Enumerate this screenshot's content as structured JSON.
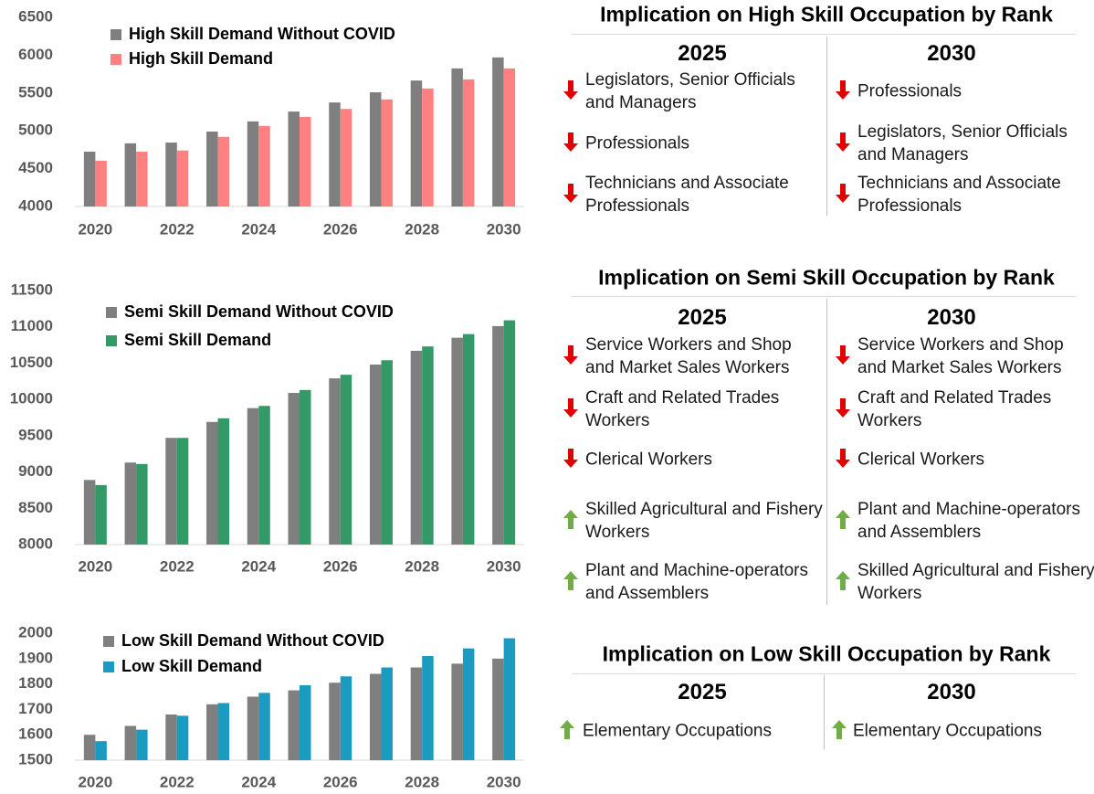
{
  "chart_data": [
    {
      "type": "bar",
      "categories": [
        2020,
        null,
        2022,
        null,
        2024,
        null,
        2026,
        null,
        2028,
        null,
        2030
      ],
      "series": [
        {
          "name": "High Skill Demand Without COVID",
          "color": "#7f7f7f",
          "values": [
            4725,
            4835,
            4845,
            4990,
            5125,
            5255,
            5375,
            5510,
            5665,
            5825,
            5970
          ]
        },
        {
          "name": "High Skill Demand",
          "color": "#ff8080",
          "values": [
            4605,
            4725,
            4740,
            4920,
            5065,
            5185,
            5290,
            5415,
            5560,
            5680,
            5825
          ]
        }
      ],
      "ylim": [
        4000,
        6500
      ],
      "yticks": [
        4000,
        4500,
        5000,
        5500,
        6000,
        6500
      ]
    },
    {
      "type": "bar",
      "categories": [
        2020,
        null,
        2022,
        null,
        2024,
        null,
        2026,
        null,
        2028,
        null,
        2030
      ],
      "series": [
        {
          "name": "Semi Skill Demand Without COVID",
          "color": "#7f7f7f",
          "values": [
            8890,
            9130,
            9470,
            9690,
            9880,
            10090,
            10290,
            10480,
            10670,
            10850,
            11010
          ]
        },
        {
          "name": "Semi Skill Demand",
          "color": "#339966",
          "values": [
            8820,
            9110,
            9470,
            9740,
            9910,
            10130,
            10340,
            10540,
            10730,
            10900,
            11090
          ]
        }
      ],
      "ylim": [
        8000,
        11500
      ],
      "yticks": [
        8000,
        8500,
        9000,
        9500,
        10000,
        10500,
        11000,
        11500
      ]
    },
    {
      "type": "bar",
      "categories": [
        2020,
        null,
        2022,
        null,
        2024,
        null,
        2026,
        null,
        2028,
        null,
        2030
      ],
      "series": [
        {
          "name": "Low Skill Demand Without COVID",
          "color": "#7f7f7f",
          "values": [
            1600,
            1635,
            1680,
            1720,
            1750,
            1775,
            1805,
            1840,
            1865,
            1880,
            1900
          ]
        },
        {
          "name": "Low Skill Demand",
          "color": "#1a9bbf",
          "values": [
            1575,
            1620,
            1675,
            1725,
            1765,
            1795,
            1830,
            1865,
            1910,
            1940,
            1980
          ]
        }
      ],
      "ylim": [
        1500,
        2000
      ],
      "yticks": [
        1500,
        1600,
        1700,
        1800,
        1900,
        2000
      ]
    }
  ],
  "panels": [
    {
      "title": "Implication on High Skill Occupation by Rank",
      "columns": [
        {
          "header": "2025",
          "items": [
            {
              "text": "Legislators, Senior Officials and Managers",
              "trend": "down"
            },
            {
              "text": "Professionals",
              "trend": "down"
            },
            {
              "text": "Technicians and Associate Professionals",
              "trend": "down"
            }
          ]
        },
        {
          "header": "2030",
          "items": [
            {
              "text": "Professionals",
              "trend": "down"
            },
            {
              "text": "Legislators, Senior Officials and Managers",
              "trend": "down"
            },
            {
              "text": "Technicians and Associate Professionals",
              "trend": "down"
            }
          ]
        }
      ]
    },
    {
      "title": "Implication on Semi Skill Occupation by Rank",
      "columns": [
        {
          "header": "2025",
          "items": [
            {
              "text": "Service Workers and Shop and Market Sales Workers",
              "trend": "down"
            },
            {
              "text": "Craft and Related Trades Workers",
              "trend": "down"
            },
            {
              "text": "Clerical Workers",
              "trend": "down"
            },
            {
              "text": "Skilled Agricultural and Fishery Workers",
              "trend": "up"
            },
            {
              "text": "Plant and Machine-operators and Assemblers",
              "trend": "up"
            }
          ]
        },
        {
          "header": "2030",
          "items": [
            {
              "text": "Service Workers and Shop and Market Sales Workers",
              "trend": "down"
            },
            {
              "text": "Craft and Related Trades Workers",
              "trend": "down"
            },
            {
              "text": "Clerical Workers",
              "trend": "down"
            },
            {
              "text": "Plant and Machine-operators and Assemblers",
              "trend": "up"
            },
            {
              "text": "Skilled Agricultural and Fishery Workers",
              "trend": "up"
            }
          ]
        }
      ]
    },
    {
      "title": "Implication on Low Skill Occupation by Rank",
      "columns": [
        {
          "header": "2025",
          "items": [
            {
              "text": "Elementary Occupations",
              "trend": "up"
            }
          ]
        },
        {
          "header": "2030",
          "items": [
            {
              "text": "Elementary Occupations",
              "trend": "up"
            }
          ]
        }
      ]
    }
  ]
}
